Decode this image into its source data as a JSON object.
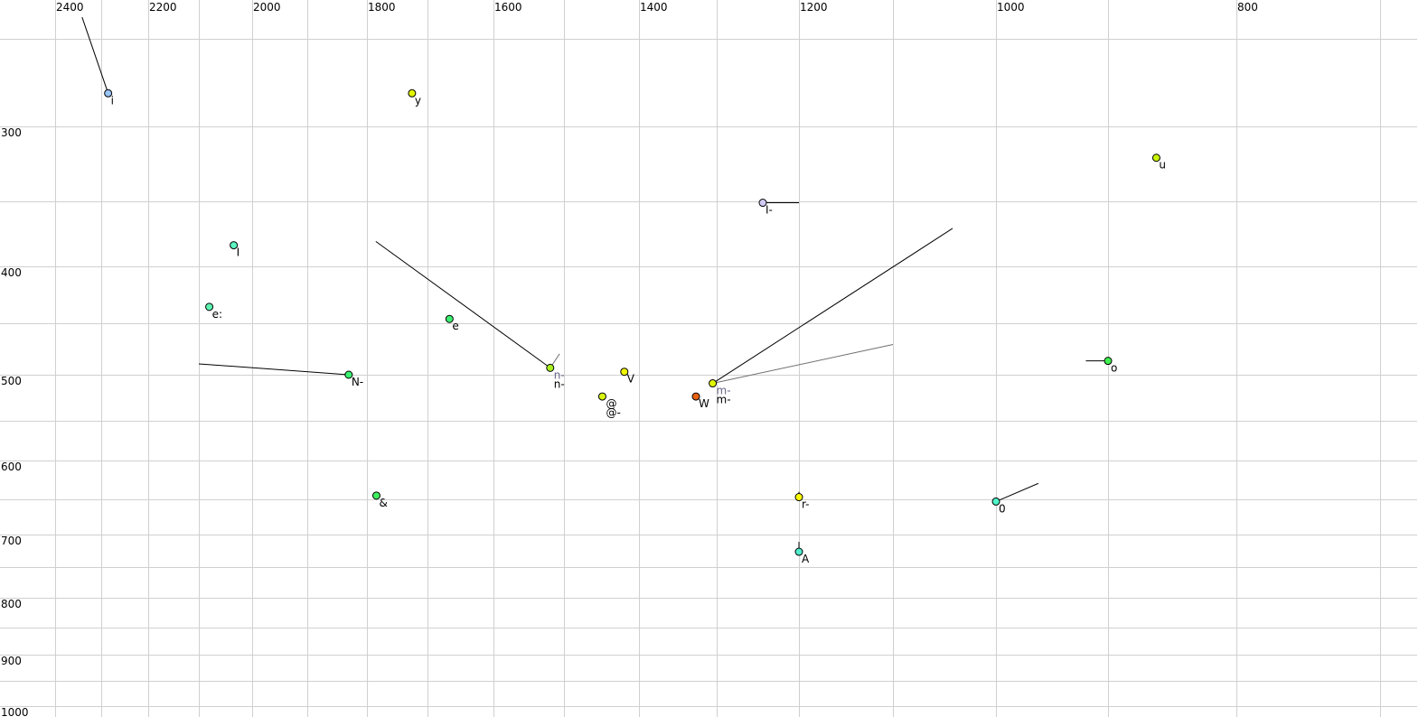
{
  "chart_data": {
    "type": "scatter",
    "title": "",
    "xlabel": "",
    "ylabel": "",
    "x_axis": {
      "reversed": true,
      "scale": "log",
      "range": [
        2400,
        700
      ],
      "tick_labels": [
        2400,
        2200,
        2000,
        1800,
        1600,
        1400,
        1200,
        1000,
        800
      ],
      "grid_values": [
        2400,
        2300,
        2200,
        2100,
        2000,
        1900,
        1800,
        1700,
        1600,
        1500,
        1400,
        1300,
        1200,
        1100,
        1000,
        900,
        800,
        700
      ]
    },
    "y_axis": {
      "reversed": false,
      "scale": "log",
      "range": [
        230,
        1000
      ],
      "tick_labels": [
        300,
        400,
        500,
        600,
        700,
        800,
        900,
        1000
      ],
      "grid_values": [
        250,
        300,
        350,
        400,
        450,
        500,
        550,
        600,
        650,
        700,
        750,
        800,
        850,
        900,
        950,
        1000
      ]
    },
    "grid": true,
    "points": [
      {
        "label": "i",
        "f2": 2285,
        "f1": 280,
        "color": "#99c4f5",
        "trails": [
          {
            "f2": 2341,
            "f1": 239,
            "color": "#000000"
          }
        ]
      },
      {
        "label": "y",
        "f2": 1725,
        "f1": 280,
        "color": "#e4f500",
        "trails": []
      },
      {
        "label": "u",
        "f2": 861,
        "f1": 320,
        "color": "#c8f500",
        "trails": []
      },
      {
        "label": "I-",
        "f2": 1243,
        "f1": 351,
        "color": "#d2ccf5",
        "trails": [
          {
            "f2": 1200,
            "f1": 351,
            "color": "#000000"
          }
        ]
      },
      {
        "label": "I",
        "f2": 2034,
        "f1": 383,
        "color": "#5cf5c0",
        "trails": []
      },
      {
        "label": "e:",
        "f2": 2080,
        "f1": 435,
        "color": "#5cf5b0",
        "trails": []
      },
      {
        "label": "e",
        "f2": 1666,
        "f1": 446,
        "color": "#3cf070",
        "trails": []
      },
      {
        "label": "N-",
        "f2": 1830,
        "f1": 500,
        "color": "#3cf070",
        "trails": [
          {
            "f2": 2100,
            "f1": 489,
            "color": "#000000"
          }
        ]
      },
      {
        "label": "n-",
        "label2": "n-",
        "f2": 1519,
        "f1": 493,
        "color": "#a8f020",
        "trails": [
          {
            "f2": 1785,
            "f1": 380,
            "color": "#000000"
          },
          {
            "f2": 1506,
            "f1": 479,
            "color": "#707070"
          }
        ]
      },
      {
        "label": "V",
        "f2": 1419,
        "f1": 497,
        "color": "#f0f500",
        "trails": []
      },
      {
        "label": "@",
        "label2": "@-",
        "f2": 1448,
        "f1": 523,
        "color": "#d8f510",
        "trails": []
      },
      {
        "label": "W",
        "f2": 1326,
        "f1": 523,
        "color": "#e86010",
        "trails": []
      },
      {
        "label": "m-",
        "label2": "m-",
        "f2": 1305,
        "f1": 509,
        "color": "#e0f500",
        "trails": [
          {
            "f2": 1041,
            "f1": 370,
            "color": "#000000"
          },
          {
            "f2": 1100,
            "f1": 470,
            "color": "#707070"
          }
        ]
      },
      {
        "label": "o",
        "f2": 900,
        "f1": 486,
        "color": "#40f050",
        "trails": [
          {
            "f2": 919,
            "f1": 486,
            "color": "#000000"
          }
        ]
      },
      {
        "label": "&",
        "f2": 1784,
        "f1": 645,
        "color": "#40f060",
        "trails": []
      },
      {
        "label": "r-",
        "f2": 1200,
        "f1": 647,
        "color": "#ffff00",
        "trails": [
          {
            "f2": 1200,
            "f1": 640,
            "color": "#000000"
          }
        ]
      },
      {
        "label": "0",
        "f2": 1000,
        "f1": 653,
        "color": "#50f5c8",
        "trails": [
          {
            "f2": 961,
            "f1": 629,
            "color": "#000000"
          }
        ]
      },
      {
        "label": "A",
        "f2": 1200,
        "f1": 726,
        "color": "#50eccc",
        "trails": [
          {
            "f2": 1200,
            "f1": 711,
            "color": "#000000"
          }
        ]
      }
    ]
  }
}
